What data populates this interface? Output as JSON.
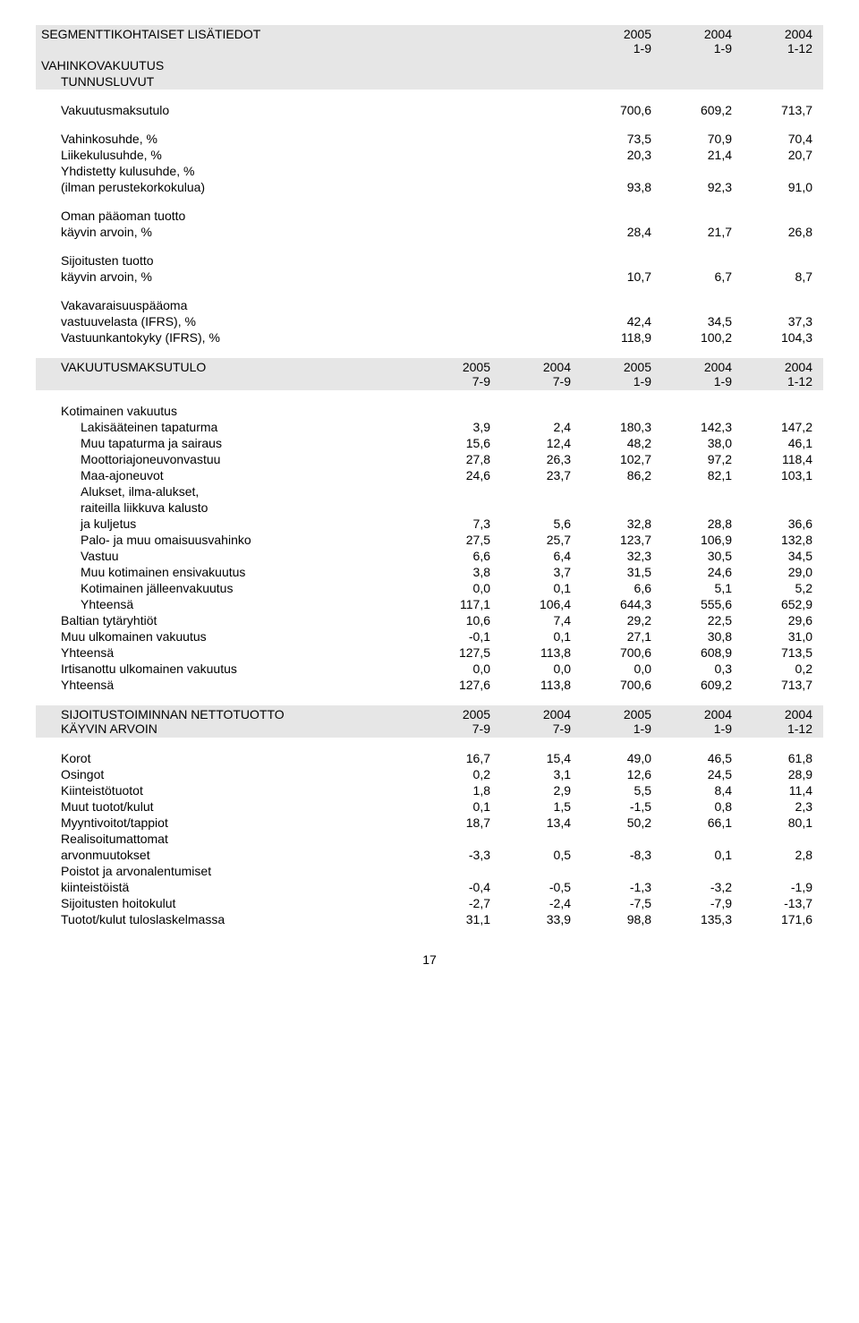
{
  "header1": {
    "title": "SEGMENTTIKOHTAISET LISÄTIEDOT",
    "sub1": "VAHINKOVAKUUTUS",
    "sub2": "TUNNUSLUVUT",
    "years": [
      "2005",
      "2004",
      "2004"
    ],
    "periods": [
      "1-9",
      "1-9",
      "1-12"
    ]
  },
  "t1_rows": [
    {
      "label": "Vakuutusmaksutulo",
      "indent": 1,
      "vals": [
        "700,6",
        "609,2",
        "713,7"
      ]
    },
    {
      "spacer": true
    },
    {
      "label": "Vahinkosuhde, %",
      "indent": 1,
      "vals": [
        "73,5",
        "70,9",
        "70,4"
      ]
    },
    {
      "label": "Liikekulusuhde, %",
      "indent": 1,
      "vals": [
        "20,3",
        "21,4",
        "20,7"
      ]
    },
    {
      "label": "Yhdistetty kulusuhde, %",
      "indent": 1,
      "vals": [
        "",
        "",
        ""
      ]
    },
    {
      "label": "(ilman perustekorkokulua)",
      "indent": 1,
      "vals": [
        "93,8",
        "92,3",
        "91,0"
      ]
    },
    {
      "spacer": true
    },
    {
      "label": "Oman pääoman tuotto",
      "indent": 1,
      "vals": [
        "",
        "",
        ""
      ]
    },
    {
      "label": "käyvin arvoin, %",
      "indent": 1,
      "vals": [
        "28,4",
        "21,7",
        "26,8"
      ]
    },
    {
      "spacer": true
    },
    {
      "label": "Sijoitusten tuotto",
      "indent": 1,
      "vals": [
        "",
        "",
        ""
      ]
    },
    {
      "label": "käyvin arvoin, %",
      "indent": 1,
      "vals": [
        "10,7",
        "6,7",
        "8,7"
      ]
    },
    {
      "spacer": true
    },
    {
      "label": "Vakavaraisuuspääoma",
      "indent": 1,
      "vals": [
        "",
        "",
        ""
      ]
    },
    {
      "label": "vastuuvelasta (IFRS), %",
      "indent": 1,
      "vals": [
        "42,4",
        "34,5",
        "37,3"
      ]
    },
    {
      "label": "Vastuunkantokyky (IFRS), %",
      "indent": 1,
      "vals": [
        "118,9",
        "100,2",
        "104,3"
      ]
    }
  ],
  "header2": {
    "title": "VAKUUTUSMAKSUTULO",
    "years": [
      "2005",
      "2004",
      "2005",
      "2004",
      "2004"
    ],
    "periods": [
      "7-9",
      "7-9",
      "1-9",
      "1-9",
      "1-12"
    ]
  },
  "t2_rows": [
    {
      "label": "Kotimainen vakuutus",
      "indent": 1,
      "vals": [
        "",
        "",
        "",
        "",
        ""
      ]
    },
    {
      "label": "Lakisääteinen tapaturma",
      "indent": 2,
      "vals": [
        "3,9",
        "2,4",
        "180,3",
        "142,3",
        "147,2"
      ]
    },
    {
      "label": "Muu tapaturma ja sairaus",
      "indent": 2,
      "vals": [
        "15,6",
        "12,4",
        "48,2",
        "38,0",
        "46,1"
      ]
    },
    {
      "label": "Moottoriajoneuvonvastuu",
      "indent": 2,
      "vals": [
        "27,8",
        "26,3",
        "102,7",
        "97,2",
        "118,4"
      ]
    },
    {
      "label": "Maa-ajoneuvot",
      "indent": 2,
      "vals": [
        "24,6",
        "23,7",
        "86,2",
        "82,1",
        "103,1"
      ]
    },
    {
      "label": "Alukset, ilma-alukset,",
      "indent": 2,
      "vals": [
        "",
        "",
        "",
        "",
        ""
      ]
    },
    {
      "label": "raiteilla liikkuva kalusto",
      "indent": 2,
      "vals": [
        "",
        "",
        "",
        "",
        ""
      ]
    },
    {
      "label": "ja kuljetus",
      "indent": 2,
      "vals": [
        "7,3",
        "5,6",
        "32,8",
        "28,8",
        "36,6"
      ]
    },
    {
      "label": "Palo- ja muu omaisuusvahinko",
      "indent": 2,
      "vals": [
        "27,5",
        "25,7",
        "123,7",
        "106,9",
        "132,8"
      ]
    },
    {
      "label": "Vastuu",
      "indent": 2,
      "vals": [
        "6,6",
        "6,4",
        "32,3",
        "30,5",
        "34,5"
      ]
    },
    {
      "label": "Muu kotimainen ensivakuutus",
      "indent": 2,
      "vals": [
        "3,8",
        "3,7",
        "31,5",
        "24,6",
        "29,0"
      ]
    },
    {
      "label": "Kotimainen jälleenvakuutus",
      "indent": 2,
      "vals": [
        "0,0",
        "0,1",
        "6,6",
        "5,1",
        "5,2"
      ]
    },
    {
      "label": "Yhteensä",
      "indent": 2,
      "vals": [
        "117,1",
        "106,4",
        "644,3",
        "555,6",
        "652,9"
      ]
    },
    {
      "label": "Baltian tytäryhtiöt",
      "indent": 1,
      "vals": [
        "10,6",
        "7,4",
        "29,2",
        "22,5",
        "29,6"
      ]
    },
    {
      "label": "Muu ulkomainen vakuutus",
      "indent": 1,
      "vals": [
        "-0,1",
        "0,1",
        "27,1",
        "30,8",
        "31,0"
      ]
    },
    {
      "label": "Yhteensä",
      "indent": 1,
      "vals": [
        "127,5",
        "113,8",
        "700,6",
        "608,9",
        "713,5"
      ]
    },
    {
      "label": "Irtisanottu ulkomainen vakuutus",
      "indent": 1,
      "vals": [
        "0,0",
        "0,0",
        "0,0",
        "0,3",
        "0,2"
      ]
    },
    {
      "label": "Yhteensä",
      "indent": 1,
      "vals": [
        "127,6",
        "113,8",
        "700,6",
        "609,2",
        "713,7"
      ]
    }
  ],
  "header3": {
    "title1": "SIJOITUSTOIMINNAN NETTOTUOTTO",
    "title2": "KÄYVIN ARVOIN",
    "years": [
      "2005",
      "2004",
      "2005",
      "2004",
      "2004"
    ],
    "periods": [
      "7-9",
      "7-9",
      "1-9",
      "1-9",
      "1-12"
    ]
  },
  "t3_rows": [
    {
      "label": "Korot",
      "indent": 1,
      "vals": [
        "16,7",
        "15,4",
        "49,0",
        "46,5",
        "61,8"
      ]
    },
    {
      "label": "Osingot",
      "indent": 1,
      "vals": [
        "0,2",
        "3,1",
        "12,6",
        "24,5",
        "28,9"
      ]
    },
    {
      "label": "Kiinteistötuotot",
      "indent": 1,
      "vals": [
        "1,8",
        "2,9",
        "5,5",
        "8,4",
        "11,4"
      ]
    },
    {
      "label": "Muut tuotot/kulut",
      "indent": 1,
      "vals": [
        "0,1",
        "1,5",
        "-1,5",
        "0,8",
        "2,3"
      ]
    },
    {
      "label": "Myyntivoitot/tappiot",
      "indent": 1,
      "vals": [
        "18,7",
        "13,4",
        "50,2",
        "66,1",
        "80,1"
      ]
    },
    {
      "label": "Realisoitumattomat",
      "indent": 1,
      "vals": [
        "",
        "",
        "",
        "",
        ""
      ]
    },
    {
      "label": "arvonmuutokset",
      "indent": 1,
      "vals": [
        "-3,3",
        "0,5",
        "-8,3",
        "0,1",
        "2,8"
      ]
    },
    {
      "label": "Poistot ja arvonalentumiset",
      "indent": 1,
      "vals": [
        "",
        "",
        "",
        "",
        ""
      ]
    },
    {
      "label": "kiinteistöistä",
      "indent": 1,
      "vals": [
        "-0,4",
        "-0,5",
        "-1,3",
        "-3,2",
        "-1,9"
      ]
    },
    {
      "label": "Sijoitusten hoitokulut",
      "indent": 1,
      "vals": [
        "-2,7",
        "-2,4",
        "-7,5",
        "-7,9",
        "-13,7"
      ]
    },
    {
      "label": "Tuotot/kulut tuloslaskelmassa",
      "indent": 1,
      "vals": [
        "31,1",
        "33,9",
        "98,8",
        "135,3",
        "171,6"
      ]
    }
  ],
  "pagenum": "17"
}
